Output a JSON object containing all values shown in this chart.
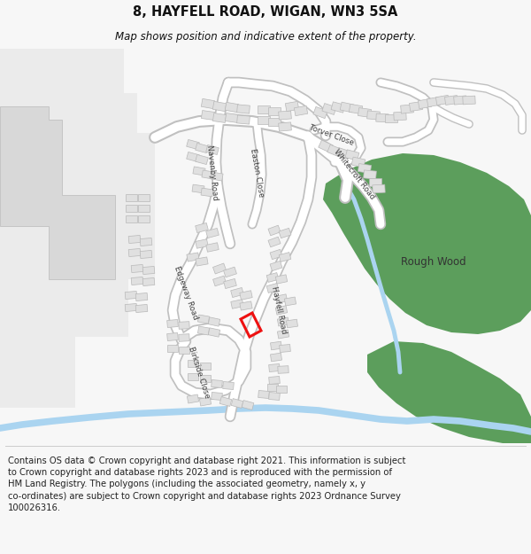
{
  "title": "8, HAYFELL ROAD, WIGAN, WN3 5SA",
  "subtitle": "Map shows position and indicative extent of the property.",
  "footer": "Contains OS data © Crown copyright and database right 2021. This information is subject\nto Crown copyright and database rights 2023 and is reproduced with the permission of\nHM Land Registry. The polygons (including the associated geometry, namely x, y\nco-ordinates) are subject to Crown copyright and database rights 2023 Ordnance Survey\n100026316.",
  "bg_color": "#f7f7f7",
  "map_bg": "#ffffff",
  "road_color": "#ffffff",
  "road_outline": "#c8c8c8",
  "building_color": "#e0e0e0",
  "building_outline": "#b8b8b8",
  "green_color": "#5c9e5c",
  "water_color": "#aad4f0",
  "highlight_color": "#ee1111",
  "gray_block": "#e4e4e4",
  "title_fontsize": 10.5,
  "subtitle_fontsize": 8.5,
  "footer_fontsize": 7.2,
  "label_fontsize": 6.2,
  "rough_wood_fontsize": 8.5
}
